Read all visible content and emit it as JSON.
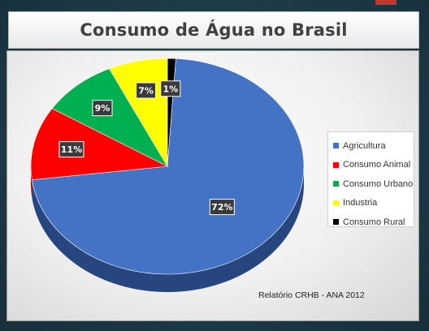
{
  "chart_data": {
    "type": "pie",
    "title": "Consumo de Água no Brasil",
    "source_note": "Relatório CRHB - ANA 2012",
    "legend_placement": "right",
    "slices": [
      {
        "name": "Agricultura",
        "value": 72,
        "label": "72%",
        "color": "#4472c4",
        "shade": "#27467f"
      },
      {
        "name": "Consumo Animal",
        "value": 11,
        "label": "11%",
        "color": "#ff0000",
        "shade": "#a10000"
      },
      {
        "name": "Consumo Urbano",
        "value": 9,
        "label": "9%",
        "color": "#00b050",
        "shade": "#006b30"
      },
      {
        "name": "Industria",
        "value": 7,
        "label": "7%",
        "color": "#ffff00",
        "shade": "#a3a300"
      },
      {
        "name": "Consumo Rural",
        "value": 1,
        "label": "1%",
        "color": "#000000",
        "shade": "#000000"
      }
    ]
  }
}
